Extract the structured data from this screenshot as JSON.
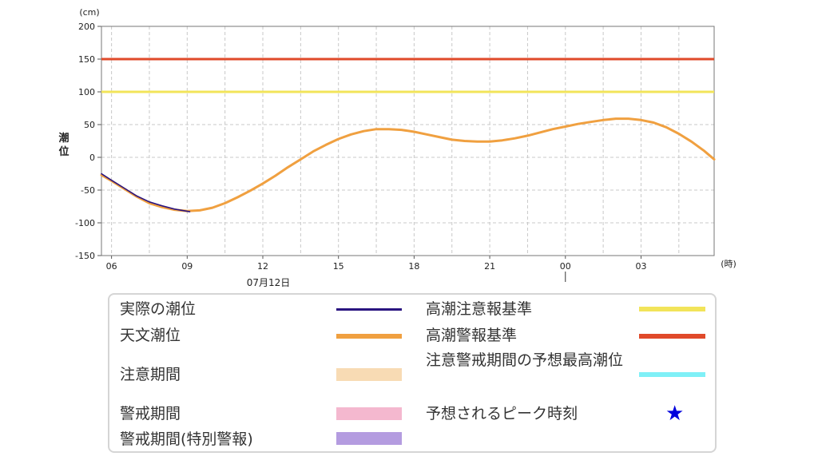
{
  "chart_data": {
    "type": "line",
    "unit_label": "(cm)",
    "ylabel": "潮位",
    "xunit_label": "(時)",
    "date_label": "07月12日",
    "ylim": [
      -150,
      200
    ],
    "yticks": [
      200,
      150,
      100,
      50,
      0,
      -50,
      -100,
      -150
    ],
    "x_range_hours": [
      5.6,
      29.9
    ],
    "xticks": [
      {
        "hour": 6,
        "label": "06"
      },
      {
        "hour": 9,
        "label": "09"
      },
      {
        "hour": 12,
        "label": "12"
      },
      {
        "hour": 15,
        "label": "15"
      },
      {
        "hour": 18,
        "label": "18"
      },
      {
        "hour": 21,
        "label": "21"
      },
      {
        "hour": 24,
        "label": "00"
      },
      {
        "hour": 27,
        "label": "03"
      }
    ],
    "grid": true,
    "series": [
      {
        "name": "天文潮位",
        "color": "#f0a040",
        "points": [
          [
            5.6,
            -27
          ],
          [
            6.0,
            -36
          ],
          [
            6.5,
            -48
          ],
          [
            7.0,
            -60
          ],
          [
            7.5,
            -70
          ],
          [
            8.0,
            -76
          ],
          [
            8.5,
            -80
          ],
          [
            9.0,
            -82
          ],
          [
            9.5,
            -81
          ],
          [
            10.0,
            -77
          ],
          [
            10.5,
            -70
          ],
          [
            11.0,
            -61
          ],
          [
            11.5,
            -51
          ],
          [
            12.0,
            -40
          ],
          [
            12.5,
            -28
          ],
          [
            13.0,
            -15
          ],
          [
            13.5,
            -3
          ],
          [
            14.0,
            9
          ],
          [
            14.5,
            19
          ],
          [
            15.0,
            28
          ],
          [
            15.5,
            35
          ],
          [
            16.0,
            40
          ],
          [
            16.5,
            43
          ],
          [
            17.0,
            43
          ],
          [
            17.5,
            42
          ],
          [
            18.0,
            39
          ],
          [
            18.5,
            35
          ],
          [
            19.0,
            31
          ],
          [
            19.5,
            27
          ],
          [
            20.0,
            25
          ],
          [
            20.5,
            24
          ],
          [
            21.0,
            24
          ],
          [
            21.5,
            26
          ],
          [
            22.0,
            29
          ],
          [
            22.5,
            33
          ],
          [
            23.0,
            38
          ],
          [
            23.5,
            43
          ],
          [
            24.0,
            47
          ],
          [
            24.5,
            51
          ],
          [
            25.0,
            54
          ],
          [
            25.5,
            57
          ],
          [
            26.0,
            59
          ],
          [
            26.5,
            59
          ],
          [
            27.0,
            57
          ],
          [
            27.5,
            53
          ],
          [
            28.0,
            46
          ],
          [
            28.5,
            36
          ],
          [
            29.0,
            24
          ],
          [
            29.5,
            10
          ],
          [
            29.9,
            -3
          ]
        ]
      },
      {
        "name": "実際の潮位",
        "color": "#2a1480",
        "points": [
          [
            5.6,
            -25
          ],
          [
            6.0,
            -35
          ],
          [
            6.5,
            -47
          ],
          [
            7.0,
            -59
          ],
          [
            7.5,
            -68
          ],
          [
            8.0,
            -74
          ],
          [
            8.5,
            -79
          ],
          [
            9.1,
            -83
          ]
        ]
      }
    ],
    "thresholds": [
      {
        "name": "高潮警報基準",
        "value": 150,
        "color": "#e04a2a"
      },
      {
        "name": "高潮注意報基準",
        "value": 100,
        "color": "#f2e45a"
      }
    ]
  },
  "legend": {
    "items": [
      {
        "label": "実際の潮位",
        "color": "#2a1480",
        "kind": "line"
      },
      {
        "label": "高潮注意報基準",
        "color": "#f2e45a",
        "kind": "thick"
      },
      {
        "label": "天文潮位",
        "color": "#f0a040",
        "kind": "thick"
      },
      {
        "label": "高潮警報基準",
        "color": "#e04a2a",
        "kind": "thick"
      },
      {
        "label": "注意期間",
        "color": "#f8dbb4",
        "kind": "block"
      },
      {
        "label": "注意警戒期間の予想最高潮位",
        "color": "#7ff0f7",
        "kind": "thick"
      },
      {
        "label": "警戒期間",
        "color": "#f4b8cf",
        "kind": "block"
      },
      {
        "label": "予想されるピーク時刻",
        "color": "#0000dd",
        "kind": "star",
        "glyph": "★"
      },
      {
        "label": "警戒期間(特別警報)",
        "color": "#b49ce0",
        "kind": "block"
      }
    ]
  }
}
